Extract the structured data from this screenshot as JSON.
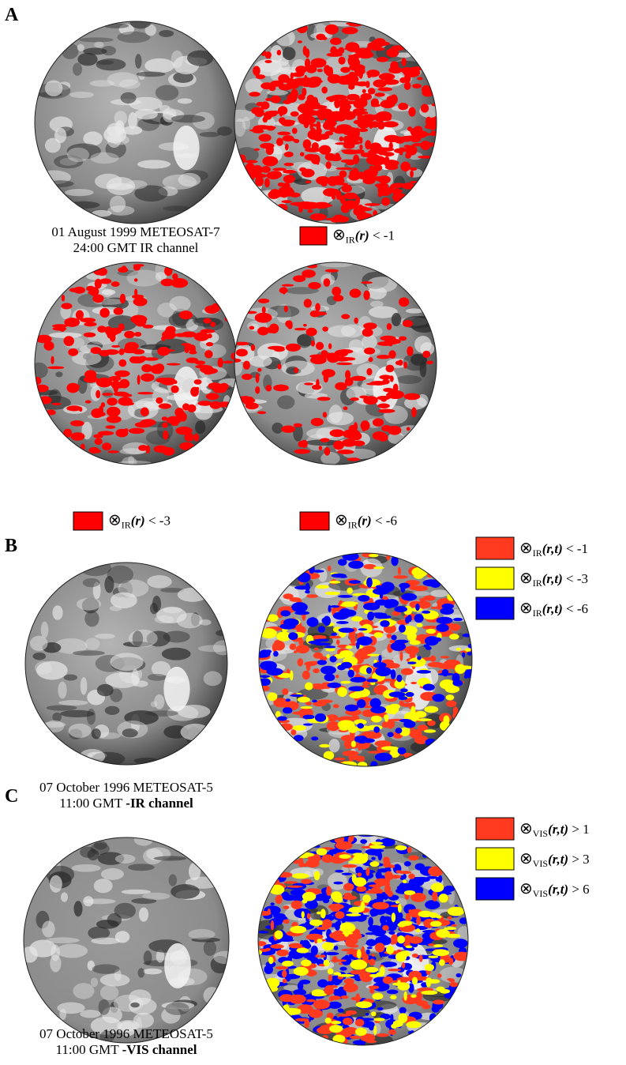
{
  "panels": [
    {
      "label": "A",
      "captions": [
        [
          {
            "text": "01 August 1999 METEOSAT-7",
            "bold": false
          }
        ],
        [
          {
            "text": "24:00 GMT IR channel",
            "bold": false
          }
        ]
      ],
      "legend": [
        {
          "symbol": "⊗",
          "subscript": "IR",
          "args": "(r)",
          "condition": " < -1",
          "color": "#ff0000"
        },
        {
          "symbol": "⊗",
          "subscript": "IR",
          "args": "(r)",
          "condition": " < -3",
          "color": "#ff0000"
        },
        {
          "symbol": "⊗",
          "subscript": "IR",
          "args": "(r)",
          "condition": " < -6",
          "color": "#ff0000"
        }
      ]
    },
    {
      "label": "B",
      "captions": [
        [
          {
            "text": "07 October 1996 METEOSAT-5",
            "bold": false
          }
        ],
        [
          {
            "text": "11:00 GMT ",
            "bold": false
          },
          {
            "text": "-IR channel",
            "bold": true
          }
        ]
      ],
      "legend": [
        {
          "symbol": "⊗",
          "subscript": "IR",
          "args": "(r,t)",
          "condition": " < -1",
          "color": "#ff3a1f"
        },
        {
          "symbol": "⊗",
          "subscript": "IR",
          "args": "(r,t)",
          "condition": " < -3",
          "color": "#ffff00"
        },
        {
          "symbol": "⊗",
          "subscript": "IR",
          "args": "(r,t)",
          "condition": " < -6",
          "color": "#0000ff"
        }
      ]
    },
    {
      "label": "C",
      "captions": [
        [
          {
            "text": "07 October 1996 METEOSAT-5",
            "bold": false
          }
        ],
        [
          {
            "text": "11:00 GMT ",
            "bold": false
          },
          {
            "text": "-VIS channel",
            "bold": true
          }
        ]
      ],
      "legend": [
        {
          "symbol": "⊗",
          "subscript": "VIS",
          "args": "(r,t)",
          "condition": " > 1",
          "color": "#ff3a1f"
        },
        {
          "symbol": "⊗",
          "subscript": "VIS",
          "args": "(r,t)",
          "condition": " > 3",
          "color": "#ffff00"
        },
        {
          "symbol": "⊗",
          "subscript": "VIS",
          "args": "(r,t)",
          "condition": " > 6",
          "color": "#0000ff"
        }
      ]
    }
  ]
}
